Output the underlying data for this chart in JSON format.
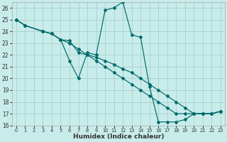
{
  "xlabel": "Humidex (Indice chaleur)",
  "xlim": [
    -0.5,
    23.5
  ],
  "ylim": [
    16,
    26.5
  ],
  "xticks": [
    0,
    1,
    2,
    3,
    4,
    5,
    6,
    7,
    8,
    9,
    10,
    11,
    12,
    13,
    14,
    15,
    16,
    17,
    18,
    19,
    20,
    21,
    22,
    23
  ],
  "yticks": [
    16,
    17,
    18,
    19,
    20,
    21,
    22,
    23,
    24,
    25,
    26
  ],
  "bg_color": "#c8ecea",
  "grid_color": "#add4d0",
  "line_color": "#006b6b",
  "lines": [
    {
      "x": [
        0,
        1,
        3,
        4,
        5,
        6,
        7,
        8,
        9,
        10,
        11,
        12,
        13,
        14,
        15,
        16,
        17,
        18,
        19,
        20,
        21,
        22,
        23
      ],
      "y": [
        25,
        24.5,
        24,
        23.8,
        23.3,
        23.2,
        22.2,
        22.0,
        21.8,
        21.5,
        21.2,
        20.8,
        20.5,
        20.0,
        19.5,
        19.0,
        18.5,
        18.0,
        17.5,
        17.0,
        17.0,
        17.0,
        17.2
      ]
    },
    {
      "x": [
        0,
        1,
        3,
        4,
        5,
        6,
        7,
        8,
        9,
        10,
        11,
        12,
        13,
        14,
        15,
        16,
        17,
        18,
        19,
        20,
        21,
        22,
        23
      ],
      "y": [
        25,
        24.5,
        24,
        23.8,
        23.3,
        23.0,
        22.5,
        22.0,
        21.5,
        21.0,
        20.5,
        20.0,
        19.5,
        19.0,
        18.5,
        18.0,
        17.5,
        17.0,
        17.0,
        17.0,
        17.0,
        17.0,
        17.2
      ]
    },
    {
      "x": [
        0,
        1,
        3,
        4,
        5,
        6,
        7,
        8,
        9,
        10,
        11,
        12,
        13,
        14,
        15,
        16,
        17,
        18,
        19,
        20,
        21,
        22,
        23
      ],
      "y": [
        25,
        24.5,
        24,
        23.8,
        23.3,
        21.5,
        20.0,
        22.2,
        22.0,
        25.8,
        26.0,
        26.5,
        23.7,
        23.5,
        19.3,
        16.3,
        16.3,
        16.3,
        16.5,
        17.0,
        17.0,
        17.0,
        17.2
      ]
    }
  ]
}
